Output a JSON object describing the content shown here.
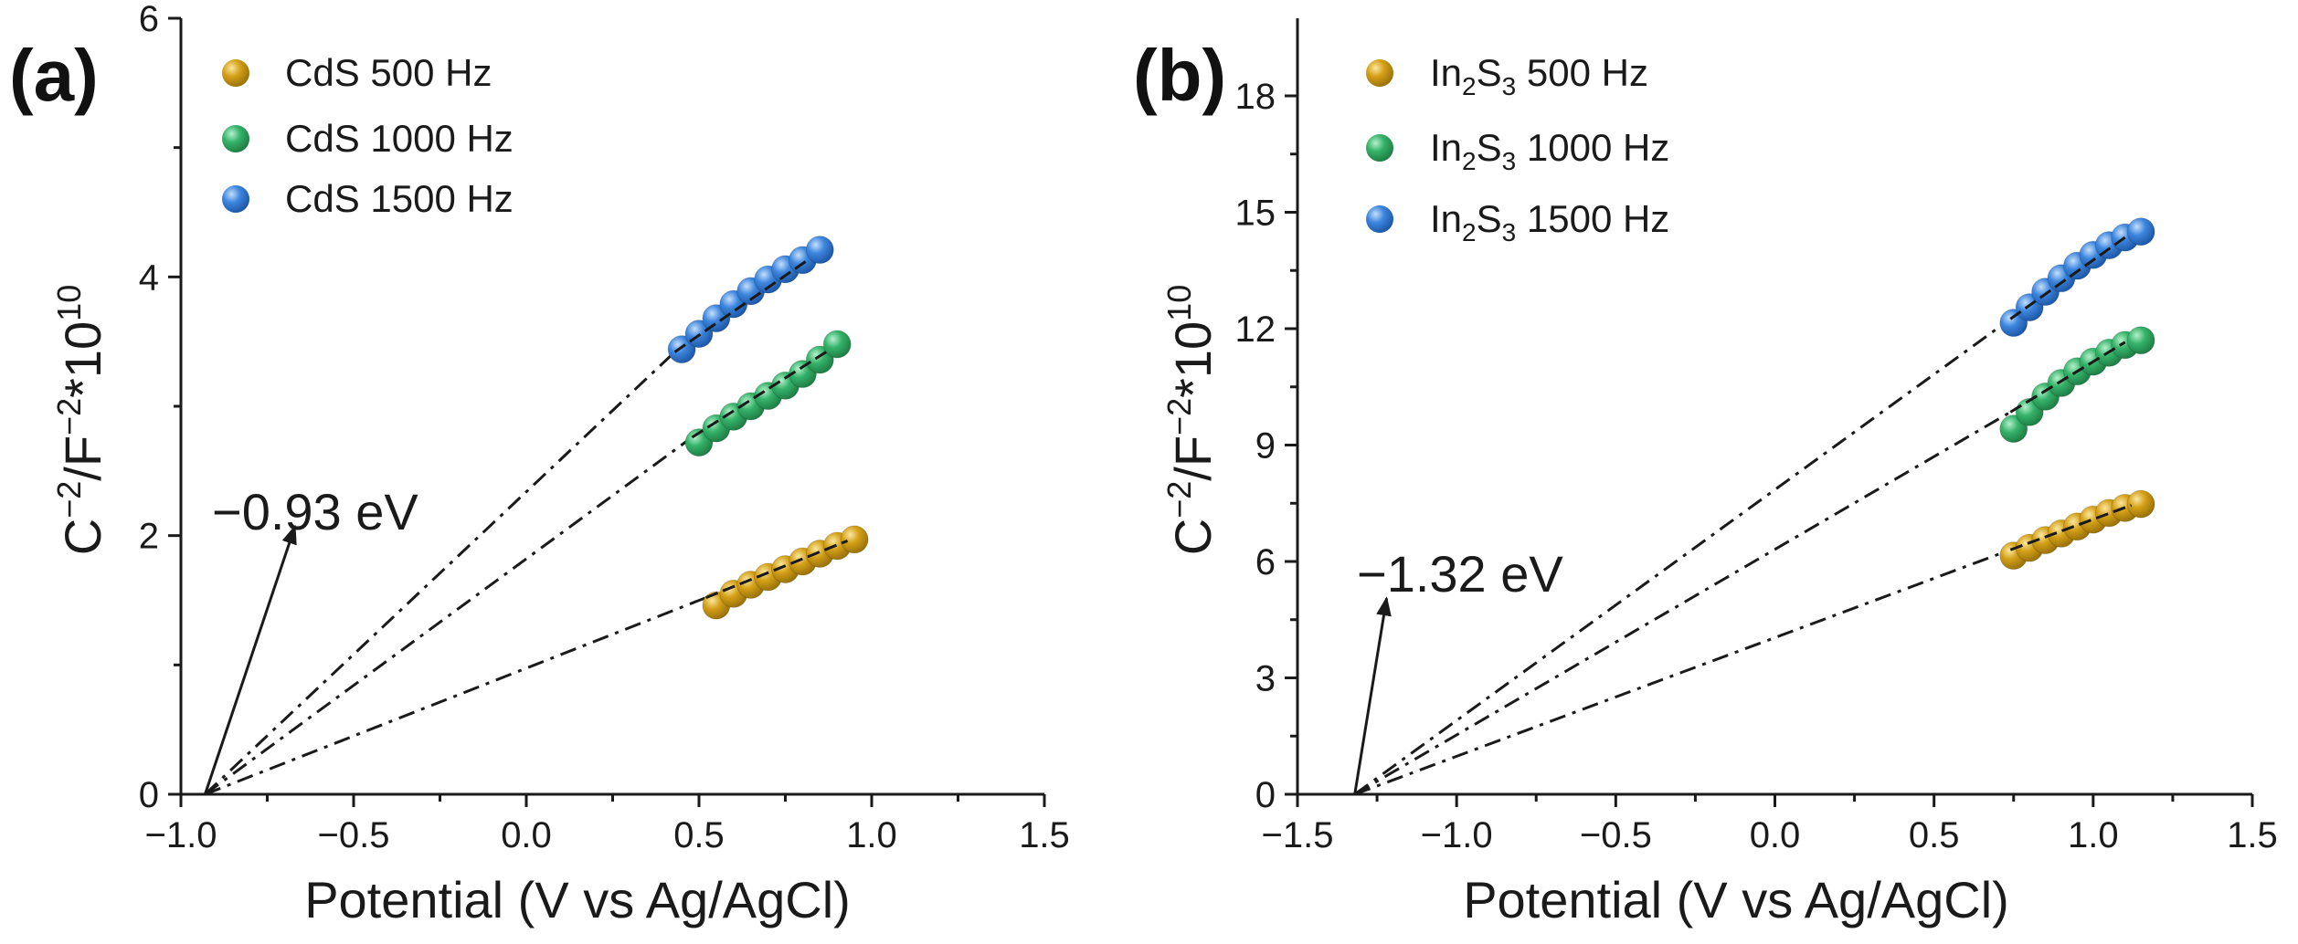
{
  "colors": {
    "cds_500": "#D4A017",
    "cds_1000": "#35B36A",
    "cds_1500": "#3D86DE",
    "axis": "#1a1a1a",
    "fit": "#1a1a1a"
  },
  "chart_data": [
    {
      "type": "scatter",
      "panel_label": "(a)",
      "xlabel": "Potential (V vs Ag/AgCl)",
      "ylabel_base": "C",
      "ylabel_exp1": "−2",
      "ylabel_mid": "/F",
      "ylabel_exp2": "−2",
      "ylabel_mult": "*10",
      "ylabel_exp3": "10",
      "xlim": [
        -1.0,
        1.5
      ],
      "ylim": [
        0,
        6
      ],
      "xticks": [
        -1.0,
        -0.5,
        0.0,
        0.5,
        1.0,
        1.5
      ],
      "xtick_labels": [
        "−1.0",
        "−0.5",
        "0.0",
        "0.5",
        "1.0",
        "1.5"
      ],
      "yticks": [
        0,
        2,
        4,
        6
      ],
      "ytick_labels": [
        "0",
        "2",
        "4",
        "6"
      ],
      "legend_position": "top-left",
      "intercept": -0.93,
      "annotation": {
        "text": "−0.93 eV",
        "arrow_from": [
          -0.93,
          0.0
        ],
        "arrow_to": [
          -0.67,
          2.07
        ]
      },
      "series": [
        {
          "name": "CdS 500 Hz",
          "color_key": "cds_500",
          "x": [
            0.55,
            0.6,
            0.65,
            0.7,
            0.75,
            0.8,
            0.85,
            0.9,
            0.95
          ],
          "y": [
            1.46,
            1.55,
            1.62,
            1.68,
            1.74,
            1.8,
            1.86,
            1.92,
            1.97
          ],
          "fit_from": [
            0.52,
            0.93
          ],
          "fit_to": [
            1.52,
            1.96
          ]
        },
        {
          "name": "CdS 1000 Hz",
          "color_key": "cds_1000",
          "x": [
            0.5,
            0.55,
            0.6,
            0.65,
            0.7,
            0.75,
            0.8,
            0.85,
            0.9
          ],
          "y": [
            2.72,
            2.83,
            2.92,
            3.0,
            3.08,
            3.16,
            3.25,
            3.36,
            3.48
          ],
          "fit_from": [
            0.48,
            0.88
          ],
          "fit_to": [
            2.76,
            3.44
          ]
        },
        {
          "name": "CdS 1500 Hz",
          "color_key": "cds_1500",
          "x": [
            0.45,
            0.5,
            0.55,
            0.6,
            0.65,
            0.7,
            0.75,
            0.8,
            0.85
          ],
          "y": [
            3.44,
            3.56,
            3.68,
            3.79,
            3.89,
            3.98,
            4.06,
            4.13,
            4.21
          ],
          "fit_from": [
            0.43,
            0.82
          ],
          "fit_to": [
            3.42,
            4.14
          ]
        }
      ]
    },
    {
      "type": "scatter",
      "panel_label": "(b)",
      "xlabel": "Potential (V vs Ag/AgCl)",
      "ylabel_base": "C",
      "ylabel_exp1": "−2",
      "ylabel_mid": "/F",
      "ylabel_exp2": "−2",
      "ylabel_mult": "*10",
      "ylabel_exp3": "10",
      "xlim": [
        -1.5,
        1.5
      ],
      "ylim": [
        0,
        20
      ],
      "xticks": [
        -1.5,
        -1.0,
        -0.5,
        0.0,
        0.5,
        1.0,
        1.5
      ],
      "xtick_labels": [
        "−1.5",
        "−1.0",
        "−0.5",
        "0.0",
        "0.5",
        "1.0",
        "1.5"
      ],
      "yticks": [
        0,
        3,
        6,
        9,
        12,
        15,
        18
      ],
      "ytick_labels": [
        "0",
        "3",
        "6",
        "9",
        "12",
        "15",
        "18"
      ],
      "legend_position": "top-left",
      "intercept": -1.32,
      "annotation": {
        "text": "−1.32 eV",
        "arrow_from": [
          -1.32,
          0.0
        ],
        "arrow_to": [
          -1.22,
          5.05
        ]
      },
      "series": [
        {
          "name_main": "In",
          "name_sub1": "2",
          "name_mid": "S",
          "name_sub2": "3",
          "name_rest": " 500 Hz",
          "color_key": "cds_500",
          "x": [
            0.75,
            0.8,
            0.85,
            0.9,
            0.95,
            1.0,
            1.05,
            1.1,
            1.15
          ],
          "y": [
            6.15,
            6.35,
            6.55,
            6.72,
            6.9,
            7.08,
            7.25,
            7.38,
            7.48
          ],
          "fit_from": [
            0.74,
            6.3
          ],
          "fit_to": [
            1.12,
            7.45
          ]
        },
        {
          "name_main": "In",
          "name_sub1": "2",
          "name_mid": "S",
          "name_sub2": "3",
          "name_rest": " 1000 Hz",
          "color_key": "cds_1000",
          "x": [
            0.75,
            0.8,
            0.85,
            0.9,
            0.95,
            1.0,
            1.05,
            1.1,
            1.15
          ],
          "y": [
            9.42,
            9.85,
            10.25,
            10.6,
            10.9,
            11.15,
            11.38,
            11.58,
            11.7
          ],
          "fit_from": [
            0.74,
            9.85
          ],
          "fit_to": [
            1.1,
            11.65
          ]
        },
        {
          "name_main": "In",
          "name_sub1": "2",
          "name_mid": "S",
          "name_sub2": "3",
          "name_rest": " 1500 Hz",
          "color_key": "cds_1500",
          "x": [
            0.75,
            0.8,
            0.85,
            0.9,
            0.95,
            1.0,
            1.05,
            1.1,
            1.15
          ],
          "y": [
            12.15,
            12.55,
            12.95,
            13.3,
            13.62,
            13.9,
            14.15,
            14.35,
            14.5
          ],
          "fit_from": [
            0.74,
            12.25
          ],
          "fit_to": [
            1.1,
            14.35
          ]
        }
      ]
    }
  ]
}
